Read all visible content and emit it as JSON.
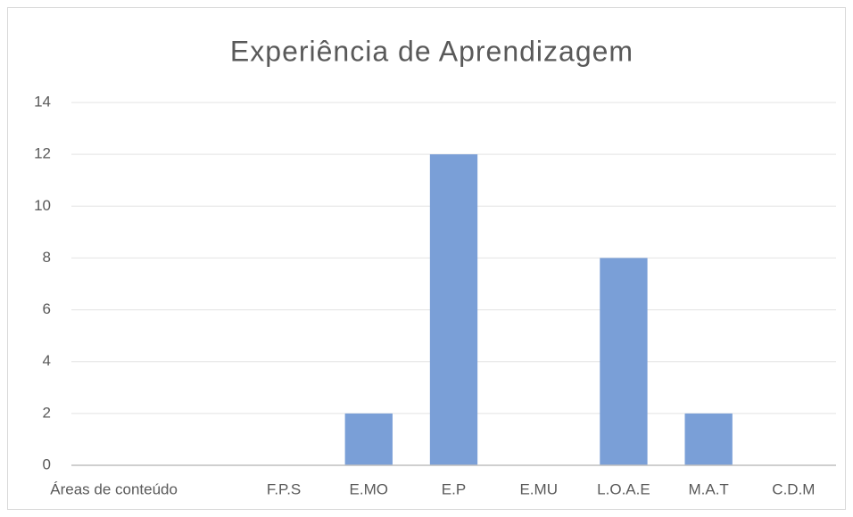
{
  "chart_data": {
    "type": "bar",
    "title": "Experiência de Aprendizagem",
    "categories": [
      "Áreas de conteúdo",
      null,
      "F.P.S",
      "E.MO",
      "E.P",
      "E.MU",
      "L.O.A.E",
      "M.A.T",
      "C.D.M"
    ],
    "values": [
      0,
      0,
      0,
      2,
      12,
      0,
      8,
      2,
      0
    ],
    "color": "#7a9fd7",
    "ylim": [
      0,
      14
    ],
    "yticks": [
      0,
      2,
      4,
      6,
      8,
      10,
      12,
      14
    ],
    "grid": true
  }
}
